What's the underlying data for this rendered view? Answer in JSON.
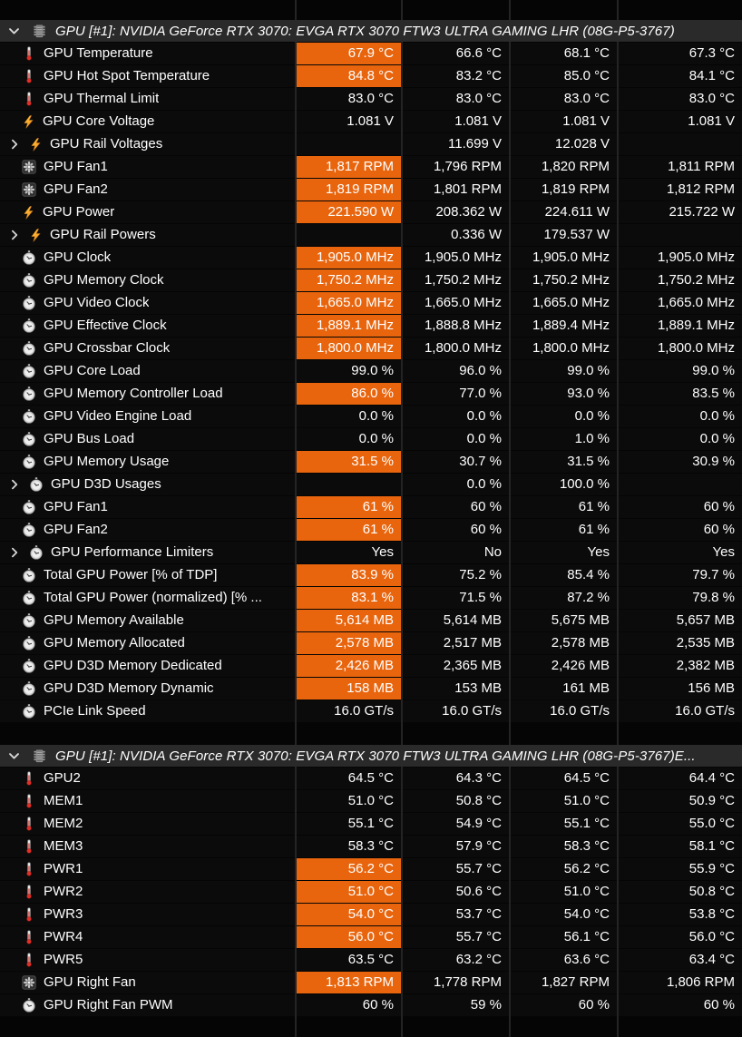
{
  "colors": {
    "highlight_orange": "#e8650e",
    "header_background": "#2a2a2a"
  },
  "sections": [
    {
      "title": "GPU [#1]: NVIDIA GeForce RTX 3070: EVGA RTX 3070 FTW3 ULTRA GAMING LHR (08G-P5-3767)",
      "icon": "chip-icon",
      "rows": [
        {
          "icon": "thermometer-icon",
          "label": "GPU Temperature",
          "expandable": false,
          "highlight": true,
          "values": [
            "67.9 °C",
            "66.6 °C",
            "68.1 °C",
            "67.3 °C"
          ]
        },
        {
          "icon": "thermometer-icon",
          "label": "GPU Hot Spot Temperature",
          "expandable": false,
          "highlight": true,
          "values": [
            "84.8 °C",
            "83.2 °C",
            "85.0 °C",
            "84.1 °C"
          ]
        },
        {
          "icon": "thermometer-icon",
          "label": "GPU Thermal Limit",
          "expandable": false,
          "highlight": false,
          "values": [
            "83.0 °C",
            "83.0 °C",
            "83.0 °C",
            "83.0 °C"
          ]
        },
        {
          "icon": "bolt-icon",
          "label": "GPU Core Voltage",
          "expandable": false,
          "highlight": false,
          "values": [
            "1.081 V",
            "1.081 V",
            "1.081 V",
            "1.081 V"
          ]
        },
        {
          "icon": "bolt-icon",
          "label": "GPU Rail Voltages",
          "expandable": true,
          "highlight": false,
          "values": [
            "",
            "11.699 V",
            "12.028 V",
            ""
          ]
        },
        {
          "icon": "fan-icon",
          "label": "GPU Fan1",
          "expandable": false,
          "highlight": true,
          "values": [
            "1,817 RPM",
            "1,796 RPM",
            "1,820 RPM",
            "1,811 RPM"
          ]
        },
        {
          "icon": "fan-icon",
          "label": "GPU Fan2",
          "expandable": false,
          "highlight": true,
          "values": [
            "1,819 RPM",
            "1,801 RPM",
            "1,819 RPM",
            "1,812 RPM"
          ]
        },
        {
          "icon": "bolt-icon",
          "label": "GPU Power",
          "expandable": false,
          "highlight": true,
          "values": [
            "221.590 W",
            "208.362 W",
            "224.611 W",
            "215.722 W"
          ]
        },
        {
          "icon": "bolt-icon",
          "label": "GPU Rail Powers",
          "expandable": true,
          "highlight": false,
          "values": [
            "",
            "0.336 W",
            "179.537 W",
            ""
          ]
        },
        {
          "icon": "clock-icon",
          "label": "GPU Clock",
          "expandable": false,
          "highlight": true,
          "values": [
            "1,905.0 MHz",
            "1,905.0 MHz",
            "1,905.0 MHz",
            "1,905.0 MHz"
          ]
        },
        {
          "icon": "clock-icon",
          "label": "GPU Memory Clock",
          "expandable": false,
          "highlight": true,
          "values": [
            "1,750.2 MHz",
            "1,750.2 MHz",
            "1,750.2 MHz",
            "1,750.2 MHz"
          ]
        },
        {
          "icon": "clock-icon",
          "label": "GPU Video Clock",
          "expandable": false,
          "highlight": true,
          "values": [
            "1,665.0 MHz",
            "1,665.0 MHz",
            "1,665.0 MHz",
            "1,665.0 MHz"
          ]
        },
        {
          "icon": "clock-icon",
          "label": "GPU Effective Clock",
          "expandable": false,
          "highlight": true,
          "values": [
            "1,889.1 MHz",
            "1,888.8 MHz",
            "1,889.4 MHz",
            "1,889.1 MHz"
          ]
        },
        {
          "icon": "clock-icon",
          "label": "GPU Crossbar Clock",
          "expandable": false,
          "highlight": true,
          "values": [
            "1,800.0 MHz",
            "1,800.0 MHz",
            "1,800.0 MHz",
            "1,800.0 MHz"
          ]
        },
        {
          "icon": "clock-icon",
          "label": "GPU Core Load",
          "expandable": false,
          "highlight": false,
          "values": [
            "99.0 %",
            "96.0 %",
            "99.0 %",
            "99.0 %"
          ]
        },
        {
          "icon": "clock-icon",
          "label": "GPU Memory Controller Load",
          "expandable": false,
          "highlight": true,
          "values": [
            "86.0 %",
            "77.0 %",
            "93.0 %",
            "83.5 %"
          ]
        },
        {
          "icon": "clock-icon",
          "label": "GPU Video Engine Load",
          "expandable": false,
          "highlight": false,
          "values": [
            "0.0 %",
            "0.0 %",
            "0.0 %",
            "0.0 %"
          ]
        },
        {
          "icon": "clock-icon",
          "label": "GPU Bus Load",
          "expandable": false,
          "highlight": false,
          "values": [
            "0.0 %",
            "0.0 %",
            "1.0 %",
            "0.0 %"
          ]
        },
        {
          "icon": "clock-icon",
          "label": "GPU Memory Usage",
          "expandable": false,
          "highlight": true,
          "values": [
            "31.5 %",
            "30.7 %",
            "31.5 %",
            "30.9 %"
          ]
        },
        {
          "icon": "clock-icon",
          "label": "GPU D3D Usages",
          "expandable": true,
          "highlight": false,
          "values": [
            "",
            "0.0 %",
            "100.0 %",
            ""
          ]
        },
        {
          "icon": "clock-icon",
          "label": "GPU Fan1",
          "expandable": false,
          "highlight": true,
          "values": [
            "61 %",
            "60 %",
            "61 %",
            "60 %"
          ]
        },
        {
          "icon": "clock-icon",
          "label": "GPU Fan2",
          "expandable": false,
          "highlight": true,
          "values": [
            "61 %",
            "60 %",
            "61 %",
            "60 %"
          ]
        },
        {
          "icon": "clock-icon",
          "label": "GPU Performance Limiters",
          "expandable": true,
          "highlight": false,
          "values": [
            "Yes",
            "No",
            "Yes",
            "Yes"
          ]
        },
        {
          "icon": "clock-icon",
          "label": "Total GPU Power [% of TDP]",
          "expandable": false,
          "highlight": true,
          "values": [
            "83.9 %",
            "75.2 %",
            "85.4 %",
            "79.7 %"
          ]
        },
        {
          "icon": "clock-icon",
          "label": "Total GPU Power (normalized) [% ...",
          "expandable": false,
          "highlight": true,
          "values": [
            "83.1 %",
            "71.5 %",
            "87.2 %",
            "79.8 %"
          ]
        },
        {
          "icon": "clock-icon",
          "label": "GPU Memory Available",
          "expandable": false,
          "highlight": true,
          "values": [
            "5,614 MB",
            "5,614 MB",
            "5,675 MB",
            "5,657 MB"
          ]
        },
        {
          "icon": "clock-icon",
          "label": "GPU Memory Allocated",
          "expandable": false,
          "highlight": true,
          "values": [
            "2,578 MB",
            "2,517 MB",
            "2,578 MB",
            "2,535 MB"
          ]
        },
        {
          "icon": "clock-icon",
          "label": "GPU D3D Memory Dedicated",
          "expandable": false,
          "highlight": true,
          "values": [
            "2,426 MB",
            "2,365 MB",
            "2,426 MB",
            "2,382 MB"
          ]
        },
        {
          "icon": "clock-icon",
          "label": "GPU D3D Memory Dynamic",
          "expandable": false,
          "highlight": true,
          "values": [
            "158 MB",
            "153 MB",
            "161 MB",
            "156 MB"
          ]
        },
        {
          "icon": "clock-icon",
          "label": "PCIe Link Speed",
          "expandable": false,
          "highlight": false,
          "values": [
            "16.0 GT/s",
            "16.0 GT/s",
            "16.0 GT/s",
            "16.0 GT/s"
          ]
        }
      ]
    },
    {
      "title": "GPU [#1]: NVIDIA GeForce RTX 3070: EVGA RTX 3070 FTW3 ULTRA GAMING LHR (08G-P5-3767)E...",
      "icon": "chip-icon",
      "rows": [
        {
          "icon": "thermometer-icon",
          "label": "GPU2",
          "expandable": false,
          "highlight": false,
          "values": [
            "64.5 °C",
            "64.3 °C",
            "64.5 °C",
            "64.4 °C"
          ]
        },
        {
          "icon": "thermometer-icon",
          "label": "MEM1",
          "expandable": false,
          "highlight": false,
          "values": [
            "51.0 °C",
            "50.8 °C",
            "51.0 °C",
            "50.9 °C"
          ]
        },
        {
          "icon": "thermometer-icon",
          "label": "MEM2",
          "expandable": false,
          "highlight": false,
          "values": [
            "55.1 °C",
            "54.9 °C",
            "55.1 °C",
            "55.0 °C"
          ]
        },
        {
          "icon": "thermometer-icon",
          "label": "MEM3",
          "expandable": false,
          "highlight": false,
          "values": [
            "58.3 °C",
            "57.9 °C",
            "58.3 °C",
            "58.1 °C"
          ]
        },
        {
          "icon": "thermometer-icon",
          "label": "PWR1",
          "expandable": false,
          "highlight": true,
          "values": [
            "56.2 °C",
            "55.7 °C",
            "56.2 °C",
            "55.9 °C"
          ]
        },
        {
          "icon": "thermometer-icon",
          "label": "PWR2",
          "expandable": false,
          "highlight": true,
          "values": [
            "51.0 °C",
            "50.6 °C",
            "51.0 °C",
            "50.8 °C"
          ]
        },
        {
          "icon": "thermometer-icon",
          "label": "PWR3",
          "expandable": false,
          "highlight": true,
          "values": [
            "54.0 °C",
            "53.7 °C",
            "54.0 °C",
            "53.8 °C"
          ]
        },
        {
          "icon": "thermometer-icon",
          "label": "PWR4",
          "expandable": false,
          "highlight": true,
          "values": [
            "56.0 °C",
            "55.7 °C",
            "56.1 °C",
            "56.0 °C"
          ]
        },
        {
          "icon": "thermometer-icon",
          "label": "PWR5",
          "expandable": false,
          "highlight": false,
          "values": [
            "63.5 °C",
            "63.2 °C",
            "63.6 °C",
            "63.4 °C"
          ]
        },
        {
          "icon": "fan-icon",
          "label": "GPU Right Fan",
          "expandable": false,
          "highlight": true,
          "values": [
            "1,813 RPM",
            "1,778 RPM",
            "1,827 RPM",
            "1,806 RPM"
          ]
        },
        {
          "icon": "clock-icon",
          "label": "GPU Right Fan PWM",
          "expandable": false,
          "highlight": false,
          "values": [
            "60 %",
            "59 %",
            "60 %",
            "60 %"
          ]
        }
      ]
    }
  ]
}
